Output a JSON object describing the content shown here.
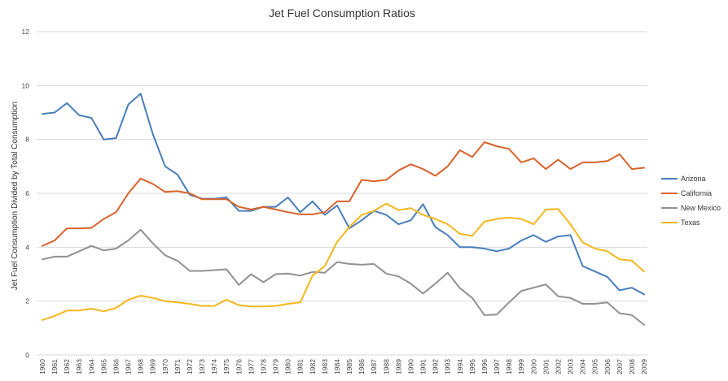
{
  "chart_data": {
    "type": "line",
    "title": "Jet Fuel Consumption Ratios",
    "xlabel": "",
    "ylabel": "Jet Fuel Consumption Divided by Total Consumption",
    "ylim": [
      0,
      12
    ],
    "yticks": [
      0,
      2,
      4,
      6,
      8,
      10,
      12
    ],
    "grid": true,
    "legend": "right",
    "x": [
      "1960",
      "1961",
      "1962",
      "1963",
      "1964",
      "1965",
      "1966",
      "1967",
      "1968",
      "1969",
      "1970",
      "1971",
      "1972",
      "1973",
      "1974",
      "1975",
      "1976",
      "1977",
      "1978",
      "1979",
      "1980",
      "1981",
      "1982",
      "1983",
      "1984",
      "1985",
      "1986",
      "1987",
      "1988",
      "1989",
      "1990",
      "1991",
      "1992",
      "1993",
      "1994",
      "1995",
      "1996",
      "1997",
      "1998",
      "1999",
      "2000",
      "2001",
      "2002",
      "2003",
      "2004",
      "2005",
      "2006",
      "2007",
      "2008",
      "2009"
    ],
    "series": [
      {
        "name": "Arizona",
        "color": "#4a7ebb",
        "values": [
          8.95,
          9.0,
          9.35,
          8.9,
          8.8,
          8.0,
          8.05,
          9.3,
          9.7,
          8.2,
          7.0,
          6.7,
          5.95,
          5.8,
          5.8,
          5.85,
          5.35,
          5.35,
          5.5,
          5.5,
          5.85,
          5.3,
          5.7,
          5.2,
          5.55,
          4.7,
          5.0,
          5.35,
          5.2,
          4.85,
          5.0,
          5.6,
          4.75,
          4.45,
          4.0,
          4.0,
          3.95,
          3.85,
          3.95,
          4.25,
          4.45,
          4.2,
          4.4,
          4.45,
          3.3,
          3.1,
          2.9,
          2.4,
          2.5,
          2.25
        ]
      },
      {
        "name": "California",
        "color": "#d8632a",
        "values": [
          4.05,
          4.25,
          4.7,
          4.7,
          4.72,
          5.05,
          5.3,
          6.0,
          6.55,
          6.35,
          6.05,
          6.08,
          6.0,
          5.78,
          5.78,
          5.78,
          5.5,
          5.4,
          5.5,
          5.4,
          5.3,
          5.22,
          5.22,
          5.3,
          5.7,
          5.7,
          6.5,
          6.45,
          6.5,
          6.85,
          7.08,
          6.9,
          6.65,
          7.0,
          7.6,
          7.35,
          7.9,
          7.75,
          7.65,
          7.15,
          7.3,
          6.9,
          7.25,
          6.9,
          7.15,
          7.15,
          7.2,
          7.45,
          6.9,
          6.95
        ]
      },
      {
        "name": "New Mexico",
        "color": "#919191",
        "values": [
          3.55,
          3.65,
          3.65,
          3.85,
          4.05,
          3.88,
          3.95,
          4.25,
          4.65,
          4.15,
          3.7,
          3.5,
          3.12,
          3.12,
          3.15,
          3.18,
          2.6,
          3.0,
          2.7,
          3.0,
          3.02,
          2.95,
          3.08,
          3.05,
          3.45,
          3.38,
          3.35,
          3.38,
          3.02,
          2.92,
          2.65,
          2.28,
          2.65,
          3.05,
          2.48,
          2.12,
          1.48,
          1.5,
          1.95,
          2.38,
          2.5,
          2.62,
          2.18,
          2.12,
          1.9,
          1.9,
          1.95,
          1.55,
          1.48,
          1.12
        ]
      },
      {
        "name": "Texas",
        "color": "#f4b71d",
        "values": [
          1.3,
          1.45,
          1.65,
          1.65,
          1.72,
          1.62,
          1.75,
          2.05,
          2.2,
          2.12,
          2.0,
          1.95,
          1.9,
          1.82,
          1.82,
          2.05,
          1.85,
          1.8,
          1.8,
          1.82,
          1.9,
          1.95,
          2.95,
          3.3,
          4.2,
          4.75,
          5.2,
          5.35,
          5.62,
          5.38,
          5.45,
          5.2,
          5.05,
          4.85,
          4.5,
          4.42,
          4.95,
          5.05,
          5.1,
          5.05,
          4.85,
          5.4,
          5.42,
          4.85,
          4.18,
          3.95,
          3.85,
          3.55,
          3.5,
          3.1
        ]
      }
    ]
  }
}
